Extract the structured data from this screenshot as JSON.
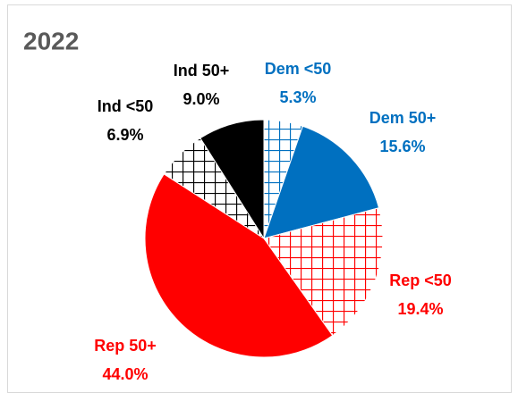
{
  "chart_data": {
    "type": "pie",
    "title": "2022",
    "categories": [
      "Dem <50",
      "Dem 50+",
      "Rep <50",
      "Rep 50+",
      "Ind <50",
      "Ind 50+"
    ],
    "values": [
      5.3,
      15.6,
      19.4,
      44.0,
      6.9,
      9.0
    ],
    "value_labels": [
      "5.3%",
      "15.6%",
      "19.4%",
      "44.0%",
      "6.9%",
      "9.0%"
    ],
    "colors": [
      "#0070c0",
      "#0070c0",
      "#ff0000",
      "#ff0000",
      "#000000",
      "#000000"
    ],
    "hatch": [
      true,
      false,
      true,
      false,
      true,
      false
    ]
  }
}
